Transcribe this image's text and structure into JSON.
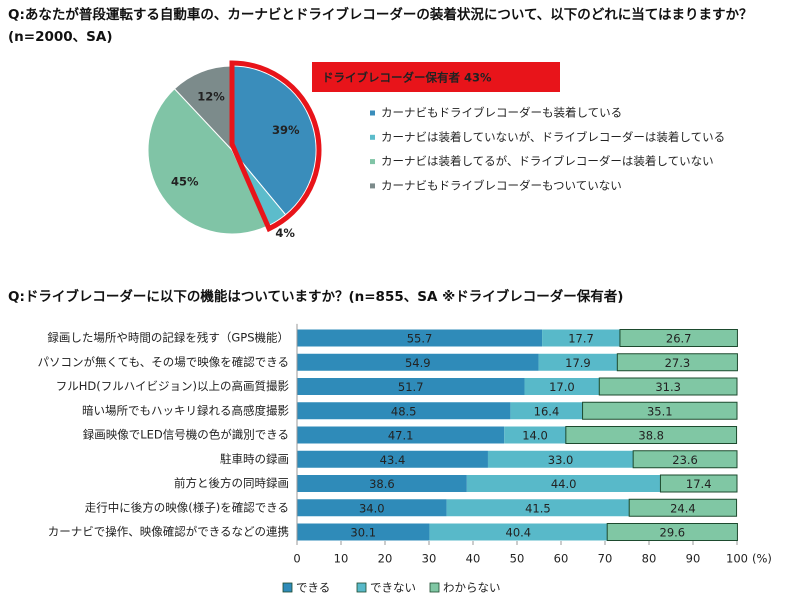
{
  "chart_data": [
    {
      "type": "pie",
      "title": "Q:あなたが普段運転する自動車の、カーナビとドライブレコーダーの装着状況について、以下のどれに当てはまりますか？(n=2000、SA)",
      "categories": [
        "カーナビもドライブレコーダーも装着している",
        "カーナビは装着していないが、ドライブレコーダーは装着している",
        "カーナビは装着してるが、ドライブレコーダーは装着していない",
        "カーナビもドライブレコーダーもついていない"
      ],
      "values": [
        39,
        4,
        45,
        12
      ],
      "value_labels": [
        "39%",
        "4%",
        "45%",
        "12%"
      ],
      "colors": [
        "#3a8dbb",
        "#5cbccb",
        "#80c4a6",
        "#7c8b8b"
      ],
      "annotation": "ドライブレコーダー保有者 43%"
    },
    {
      "type": "stacked-barh",
      "title": "Q:ドライブレコーダーに以下の機能はついていますか？(n=855、SA ※ドライブレコーダー保有者)",
      "categories": [
        "録画した場所や時間の記録を残す（GPS機能）",
        "パソコンが無くても、その場で映像を確認できる",
        "フルHD(フルハイビジョン)以上の高画質撮影",
        "暗い場所でもハッキリ録れる高感度撮影",
        "録画映像でLED信号機の色が識別できる",
        "駐車時の録画",
        "前方と後方の同時録画",
        "走行中に後方の映像(様子)を確認できる",
        "カーナビで操作、映像確認ができるなどの連携"
      ],
      "series": [
        {
          "name": "できる",
          "color": "#2f8bb9",
          "values": [
            55.7,
            54.9,
            51.7,
            48.5,
            47.1,
            43.4,
            38.6,
            34.0,
            30.1
          ],
          "value_labels": [
            "55.7",
            "54.9",
            "51.7",
            "48.5",
            "47.1",
            "43.4",
            "38.6",
            "34.0",
            "30.1"
          ]
        },
        {
          "name": "できない",
          "color": "#58b9c9",
          "values": [
            17.7,
            17.9,
            17.0,
            16.4,
            14.0,
            33.0,
            44.0,
            41.5,
            40.4
          ],
          "value_labels": [
            "17.7",
            "17.9",
            "17.0",
            "16.4",
            "14.0",
            "33.0",
            "44.0",
            "41.5",
            "40.4"
          ]
        },
        {
          "name": "わからない",
          "color": "#80c7a4",
          "values": [
            26.7,
            27.3,
            31.3,
            35.1,
            38.8,
            23.6,
            17.4,
            24.4,
            29.6
          ],
          "value_labels": [
            "26.7",
            "27.3",
            "31.3",
            "35.1",
            "38.8",
            "23.6",
            "17.4",
            "24.4",
            "29.6"
          ]
        }
      ],
      "xlim": [
        0,
        100
      ],
      "xticks": [
        0,
        10,
        20,
        30,
        40,
        50,
        60,
        70,
        80,
        90,
        100
      ],
      "xlabel": "(%)"
    }
  ]
}
